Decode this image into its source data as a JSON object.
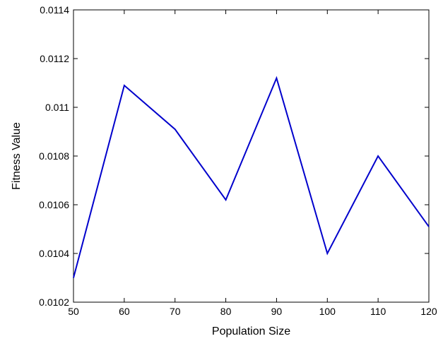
{
  "chart_data": {
    "type": "line",
    "title": "",
    "xlabel": "Population Size",
    "ylabel": "Fitness Value",
    "xlim": [
      50,
      120
    ],
    "ylim": [
      0.0102,
      0.0114
    ],
    "x_ticks": [
      50,
      60,
      70,
      80,
      90,
      100,
      110,
      120
    ],
    "x_tick_labels": [
      "50",
      "60",
      "70",
      "80",
      "90",
      "100",
      "110",
      "120"
    ],
    "y_ticks": [
      0.0102,
      0.0104,
      0.0106,
      0.0108,
      0.011,
      0.0112,
      0.0114
    ],
    "y_tick_labels": [
      "0.0102",
      "0.0104",
      "0.0106",
      "0.0108",
      "0.011",
      "0.0112",
      "0.0114"
    ],
    "grid": false,
    "series": [
      {
        "x": [
          50,
          60,
          70,
          80,
          90,
          100,
          110,
          120
        ],
        "values": [
          0.0103,
          0.01109,
          0.01091,
          0.01062,
          0.01112,
          0.0104,
          0.0108,
          0.01051
        ],
        "color": "#0000cc"
      }
    ]
  }
}
